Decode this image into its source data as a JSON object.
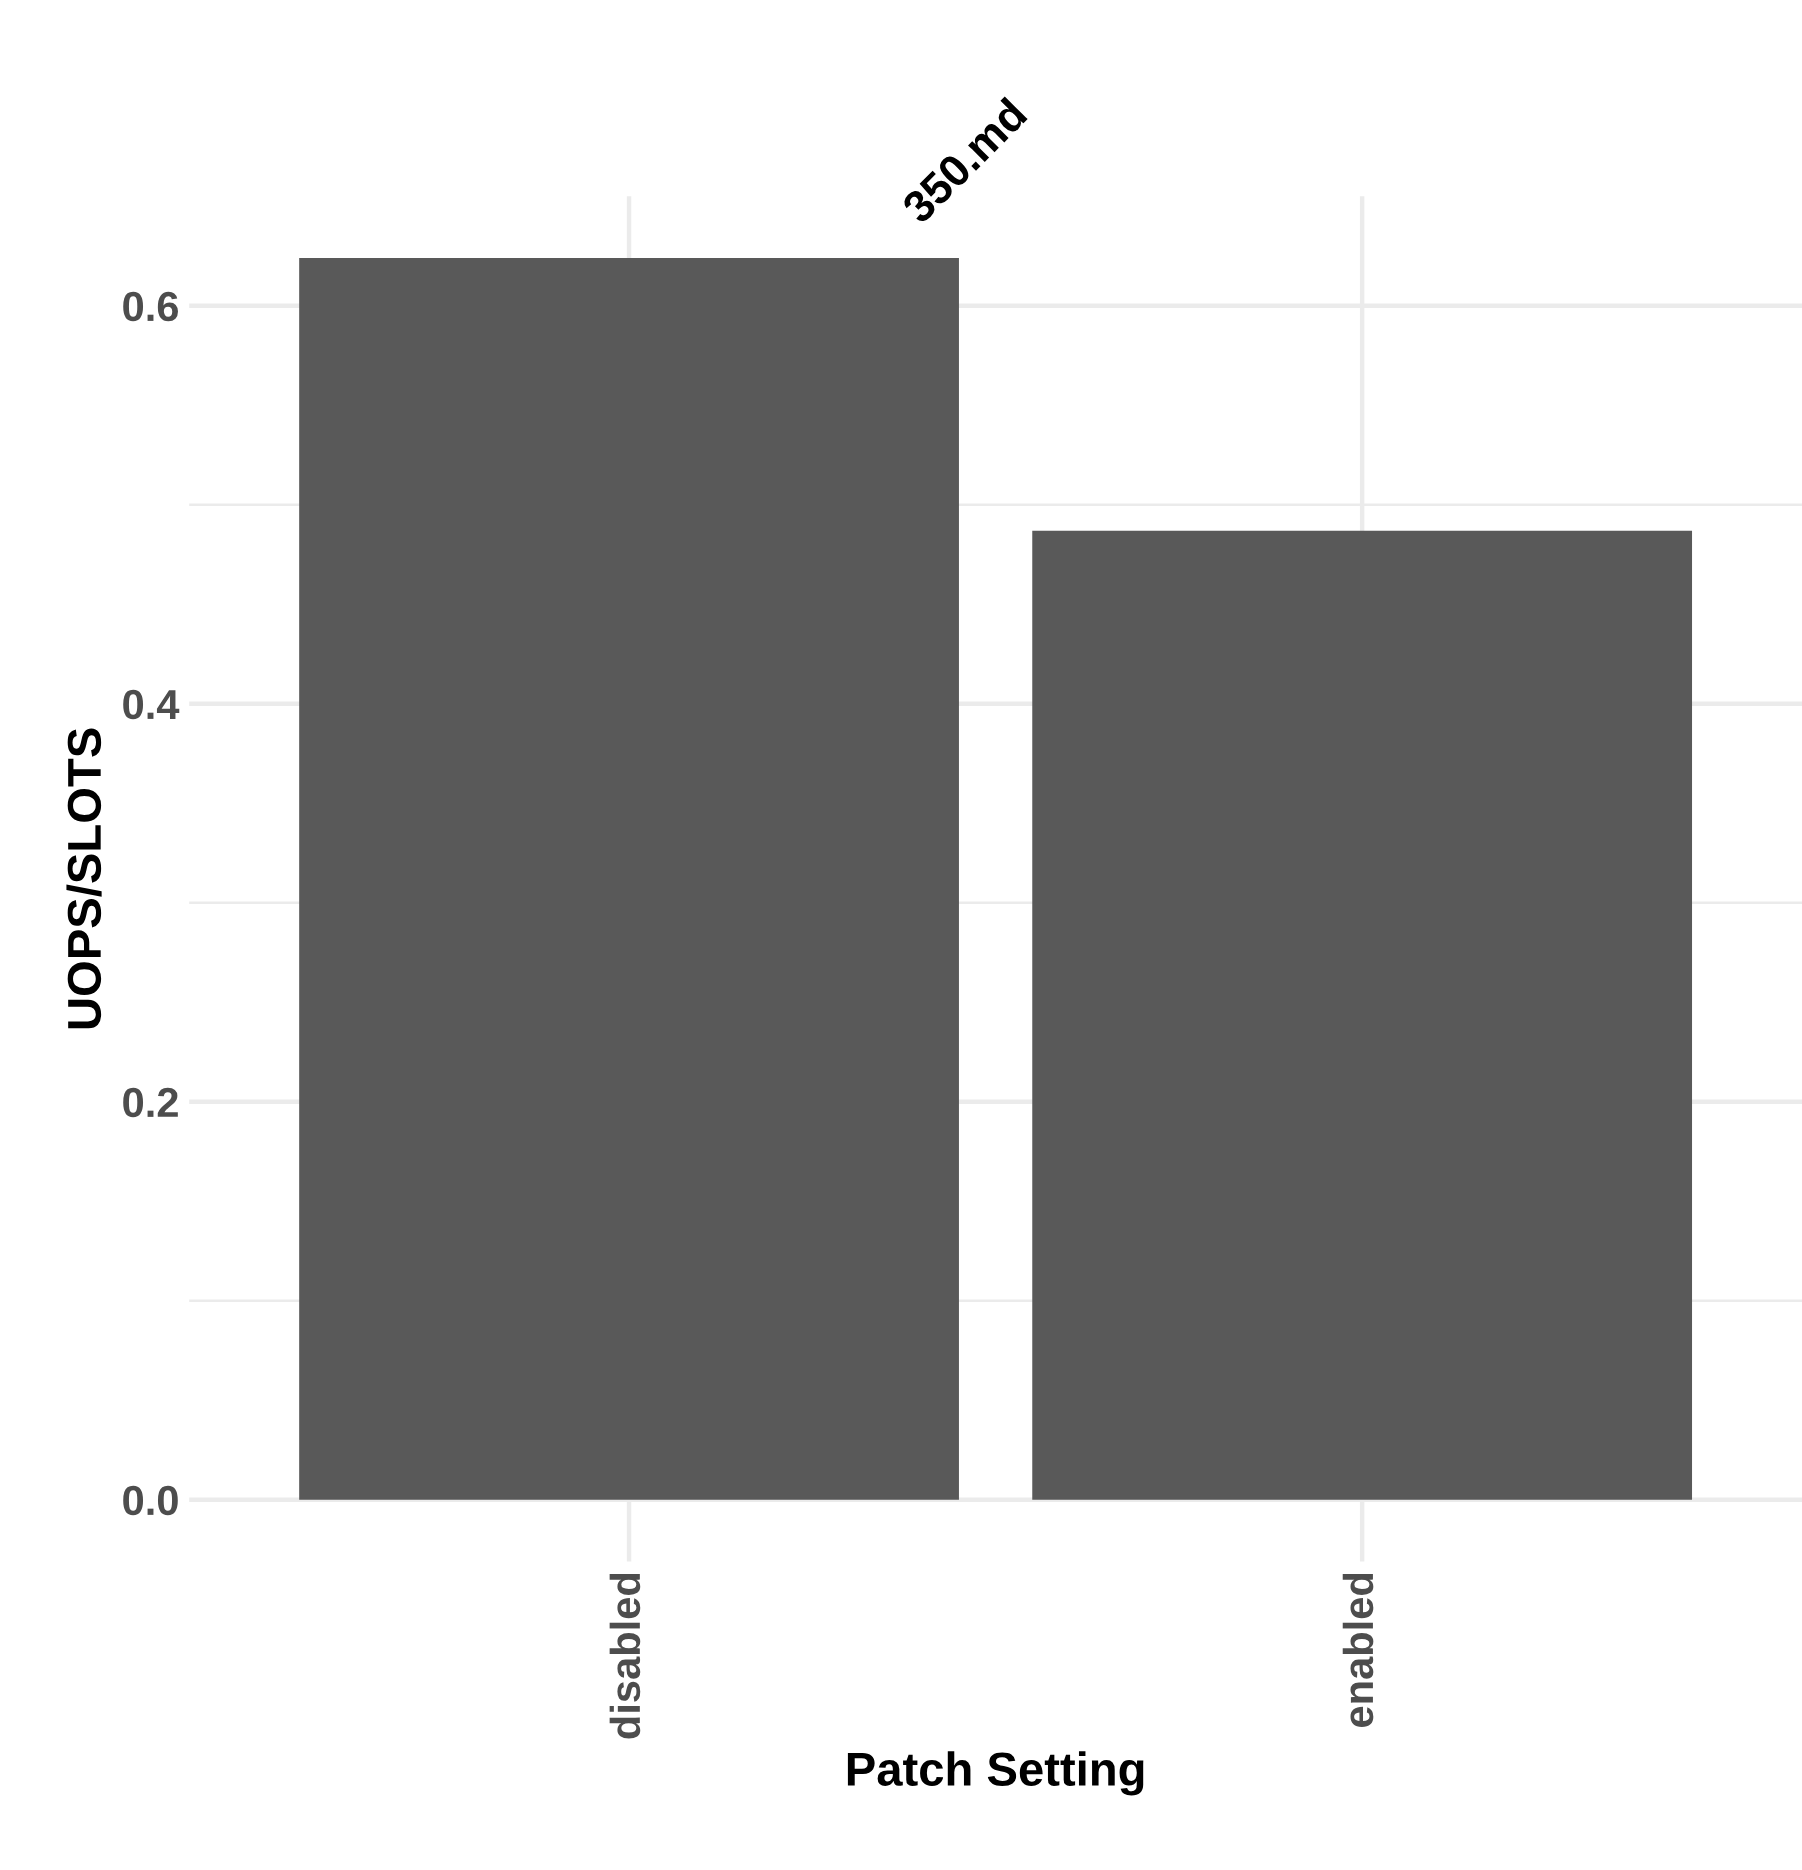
{
  "chart_data": {
    "type": "bar",
    "title": "350.md",
    "xlabel": "Patch Setting",
    "ylabel": "UOPS/SLOTS",
    "categories": [
      "disabled",
      "enabled"
    ],
    "values": [
      0.624,
      0.487
    ],
    "color": "#595959",
    "ylim": [
      -0.031,
      0.655
    ],
    "yticks": [
      {
        "value": 0,
        "label": "0.0"
      },
      {
        "value": 0.1,
        "label": null
      },
      0.2,
      {
        "value": 0.3,
        "label": null
      },
      0.4,
      {
        "value": 0.5,
        "label": null
      },
      0.6
    ],
    "grid": true
  }
}
